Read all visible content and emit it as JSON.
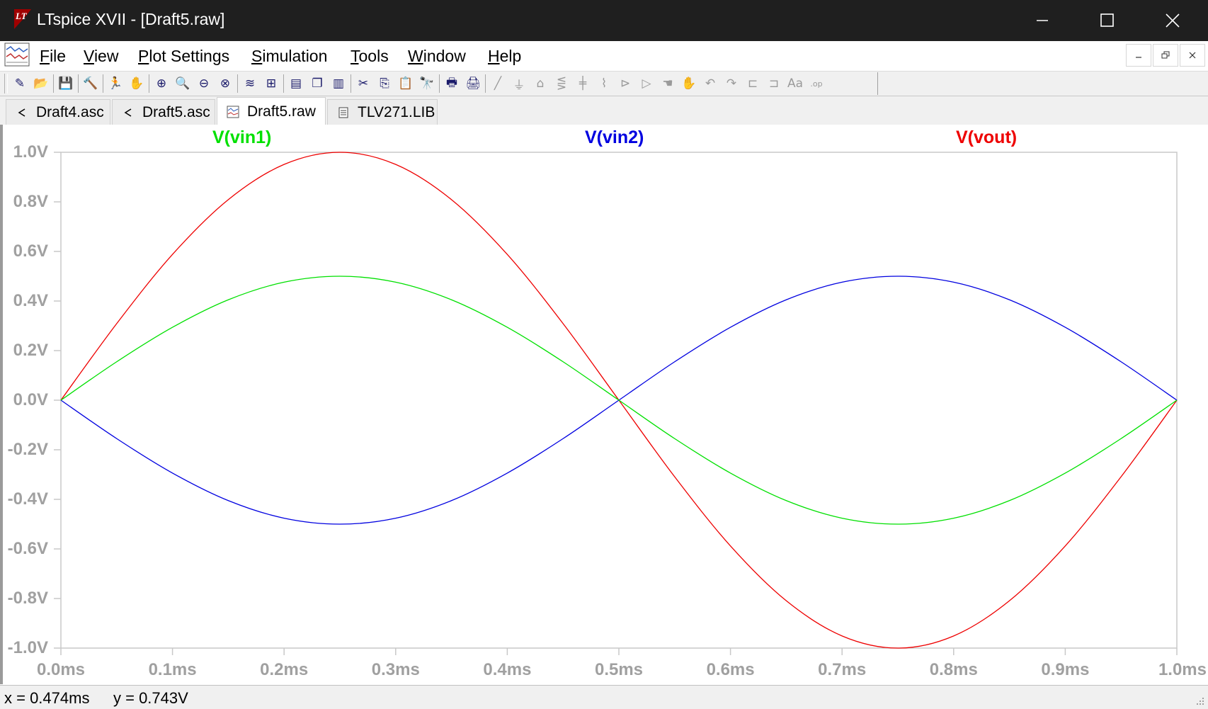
{
  "window": {
    "title": "LTspice XVII - [Draft5.raw]",
    "controls": {
      "minimize": "minimize",
      "maximize": "maximize",
      "close": "close"
    }
  },
  "menu": [
    "File",
    "View",
    "Plot Settings",
    "Simulation",
    "Tools",
    "Window",
    "Help"
  ],
  "toolbar": {
    "icons": [
      "new-schematic-icon",
      "open-icon",
      "save-icon",
      "control-panel-icon",
      "run-icon",
      "pan-hand-icon",
      "zoom-in-icon",
      "zoom-area-icon",
      "zoom-out-icon",
      "zoom-cancel-icon",
      "autorange-icon",
      "plot-settings-icon",
      "tile-horizontal-icon",
      "cascade-icon",
      "tile-vertical-icon",
      "cut-icon",
      "copy-icon",
      "paste-icon",
      "find-icon",
      "print-icon",
      "print-setup-icon",
      "draw-wire-icon",
      "ground-icon",
      "label-net-icon",
      "resistor-icon",
      "capacitor-icon",
      "inductor-icon",
      "diode-icon",
      "component-icon",
      "move-icon",
      "drag-icon",
      "undo-icon",
      "redo-icon",
      "rotate-icon",
      "mirror-icon",
      "text-icon",
      "spice-directive-icon"
    ]
  },
  "tabs": [
    {
      "label": "Draft4.asc",
      "icon": "schematic-icon",
      "active": false
    },
    {
      "label": "Draft5.asc",
      "icon": "schematic-icon",
      "active": false
    },
    {
      "label": "Draft5.raw",
      "icon": "waveform-icon",
      "active": true
    },
    {
      "label": "TLV271.LIB",
      "icon": "document-icon",
      "active": false
    }
  ],
  "chart_data": {
    "type": "line",
    "title": "",
    "xlabel": "",
    "ylabel": "",
    "xlim": [
      0.0,
      1.0
    ],
    "ylim": [
      -1.0,
      1.0
    ],
    "x_unit": "ms",
    "y_unit": "V",
    "x_tick_labels": [
      "0.0ms",
      "0.1ms",
      "0.2ms",
      "0.3ms",
      "0.4ms",
      "0.5ms",
      "0.6ms",
      "0.7ms",
      "0.8ms",
      "0.9ms",
      "1.0ms"
    ],
    "y_tick_labels": [
      "1.0V",
      "0.8V",
      "0.6V",
      "0.4V",
      "0.2V",
      "0.0V",
      "-0.2V",
      "-0.4V",
      "-0.6V",
      "-0.8V",
      "-1.0V"
    ],
    "x": [
      0.0,
      0.05,
      0.1,
      0.15,
      0.2,
      0.25,
      0.3,
      0.35,
      0.4,
      0.45,
      0.5,
      0.55,
      0.6,
      0.65,
      0.7,
      0.75,
      0.8,
      0.85,
      0.9,
      0.95,
      1.0
    ],
    "series": [
      {
        "name": "V(vin1)",
        "color": "#00e000",
        "values": [
          0.0,
          0.155,
          0.294,
          0.405,
          0.476,
          0.5,
          0.476,
          0.405,
          0.294,
          0.155,
          0.0,
          -0.155,
          -0.294,
          -0.405,
          -0.476,
          -0.5,
          -0.476,
          -0.405,
          -0.294,
          -0.155,
          0.0
        ]
      },
      {
        "name": "V(vin2)",
        "color": "#0000e0",
        "values": [
          0.0,
          -0.155,
          -0.294,
          -0.405,
          -0.476,
          -0.5,
          -0.476,
          -0.405,
          -0.294,
          -0.155,
          0.0,
          0.155,
          0.294,
          0.405,
          0.476,
          0.5,
          0.476,
          0.405,
          0.294,
          0.155,
          0.0
        ]
      },
      {
        "name": "V(vout)",
        "color": "#ee0000",
        "values": [
          0.0,
          0.309,
          0.588,
          0.809,
          0.951,
          1.0,
          0.951,
          0.809,
          0.588,
          0.309,
          0.0,
          -0.309,
          -0.588,
          -0.809,
          -0.951,
          -1.0,
          -0.951,
          -0.809,
          -0.588,
          -0.309,
          0.0
        ]
      }
    ],
    "grid": false,
    "legend": "top"
  },
  "status": {
    "x_readout": "x = 0.474ms",
    "y_readout": "y = 0.743V"
  },
  "colors": {
    "titlebar": "#1f1f1f",
    "axis_label": "#a0a0a0",
    "plot_frame": "#c8c8c8"
  }
}
